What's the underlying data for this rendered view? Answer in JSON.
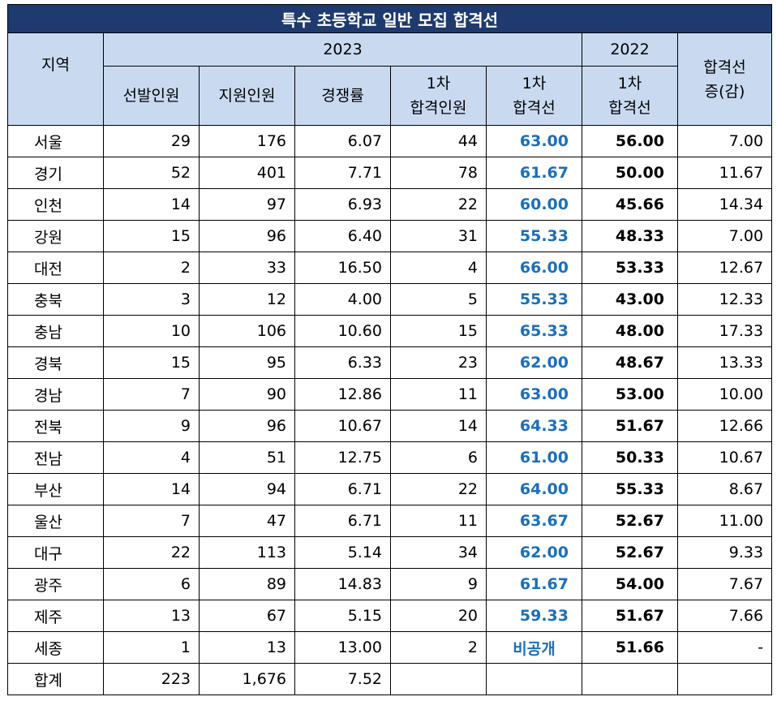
{
  "title": "특수 초등학교 일반 모집 합격선",
  "header": {
    "region": "지역",
    "year_2023": "2023",
    "year_2022": "2022",
    "change_line1": "합격선",
    "change_line2": "증(감)",
    "cols": {
      "selected": "선발인원",
      "applicants": "지원인원",
      "ratio": "경쟁률",
      "passers_line1": "1차",
      "passers_line2": "합격인원",
      "cut23_line1": "1차",
      "cut23_line2": "합격선",
      "cut22_line1": "1차",
      "cut22_line2": "합격선"
    }
  },
  "rows": [
    {
      "region": "서울",
      "selected": "29",
      "applicants": "176",
      "ratio": "6.07",
      "passers": "44",
      "cut23": "63.00",
      "cut22": "56.00",
      "change": "7.00"
    },
    {
      "region": "경기",
      "selected": "52",
      "applicants": "401",
      "ratio": "7.71",
      "passers": "78",
      "cut23": "61.67",
      "cut22": "50.00",
      "change": "11.67"
    },
    {
      "region": "인천",
      "selected": "14",
      "applicants": "97",
      "ratio": "6.93",
      "passers": "22",
      "cut23": "60.00",
      "cut22": "45.66",
      "change": "14.34"
    },
    {
      "region": "강원",
      "selected": "15",
      "applicants": "96",
      "ratio": "6.40",
      "passers": "31",
      "cut23": "55.33",
      "cut22": "48.33",
      "change": "7.00"
    },
    {
      "region": "대전",
      "selected": "2",
      "applicants": "33",
      "ratio": "16.50",
      "passers": "4",
      "cut23": "66.00",
      "cut22": "53.33",
      "change": "12.67"
    },
    {
      "region": "충북",
      "selected": "3",
      "applicants": "12",
      "ratio": "4.00",
      "passers": "5",
      "cut23": "55.33",
      "cut22": "43.00",
      "change": "12.33"
    },
    {
      "region": "충남",
      "selected": "10",
      "applicants": "106",
      "ratio": "10.60",
      "passers": "15",
      "cut23": "65.33",
      "cut22": "48.00",
      "change": "17.33"
    },
    {
      "region": "경북",
      "selected": "15",
      "applicants": "95",
      "ratio": "6.33",
      "passers": "23",
      "cut23": "62.00",
      "cut22": "48.67",
      "change": "13.33"
    },
    {
      "region": "경남",
      "selected": "7",
      "applicants": "90",
      "ratio": "12.86",
      "passers": "11",
      "cut23": "63.00",
      "cut22": "53.00",
      "change": "10.00"
    },
    {
      "region": "전북",
      "selected": "9",
      "applicants": "96",
      "ratio": "10.67",
      "passers": "14",
      "cut23": "64.33",
      "cut22": "51.67",
      "change": "12.66"
    },
    {
      "region": "전남",
      "selected": "4",
      "applicants": "51",
      "ratio": "12.75",
      "passers": "6",
      "cut23": "61.00",
      "cut22": "50.33",
      "change": "10.67"
    },
    {
      "region": "부산",
      "selected": "14",
      "applicants": "94",
      "ratio": "6.71",
      "passers": "22",
      "cut23": "64.00",
      "cut22": "55.33",
      "change": "8.67"
    },
    {
      "region": "울산",
      "selected": "7",
      "applicants": "47",
      "ratio": "6.71",
      "passers": "11",
      "cut23": "63.67",
      "cut22": "52.67",
      "change": "11.00"
    },
    {
      "region": "대구",
      "selected": "22",
      "applicants": "113",
      "ratio": "5.14",
      "passers": "34",
      "cut23": "62.00",
      "cut22": "52.67",
      "change": "9.33"
    },
    {
      "region": "광주",
      "selected": "6",
      "applicants": "89",
      "ratio": "14.83",
      "passers": "9",
      "cut23": "61.67",
      "cut22": "54.00",
      "change": "7.67"
    },
    {
      "region": "제주",
      "selected": "13",
      "applicants": "67",
      "ratio": "5.15",
      "passers": "20",
      "cut23": "59.33",
      "cut22": "51.67",
      "change": "7.66"
    },
    {
      "region": "세종",
      "selected": "1",
      "applicants": "13",
      "ratio": "13.00",
      "passers": "2",
      "cut23": "비공개",
      "cut22": "51.66",
      "change": "-"
    },
    {
      "region": "합계",
      "selected": "223",
      "applicants": "1,676",
      "ratio": "7.52",
      "passers": "",
      "cut23": "",
      "cut22": "",
      "change": ""
    }
  ],
  "colors": {
    "title_bg": "#1f3a6e",
    "header_bg": "#c9daf0",
    "cut2023_text": "#1b6fba"
  }
}
